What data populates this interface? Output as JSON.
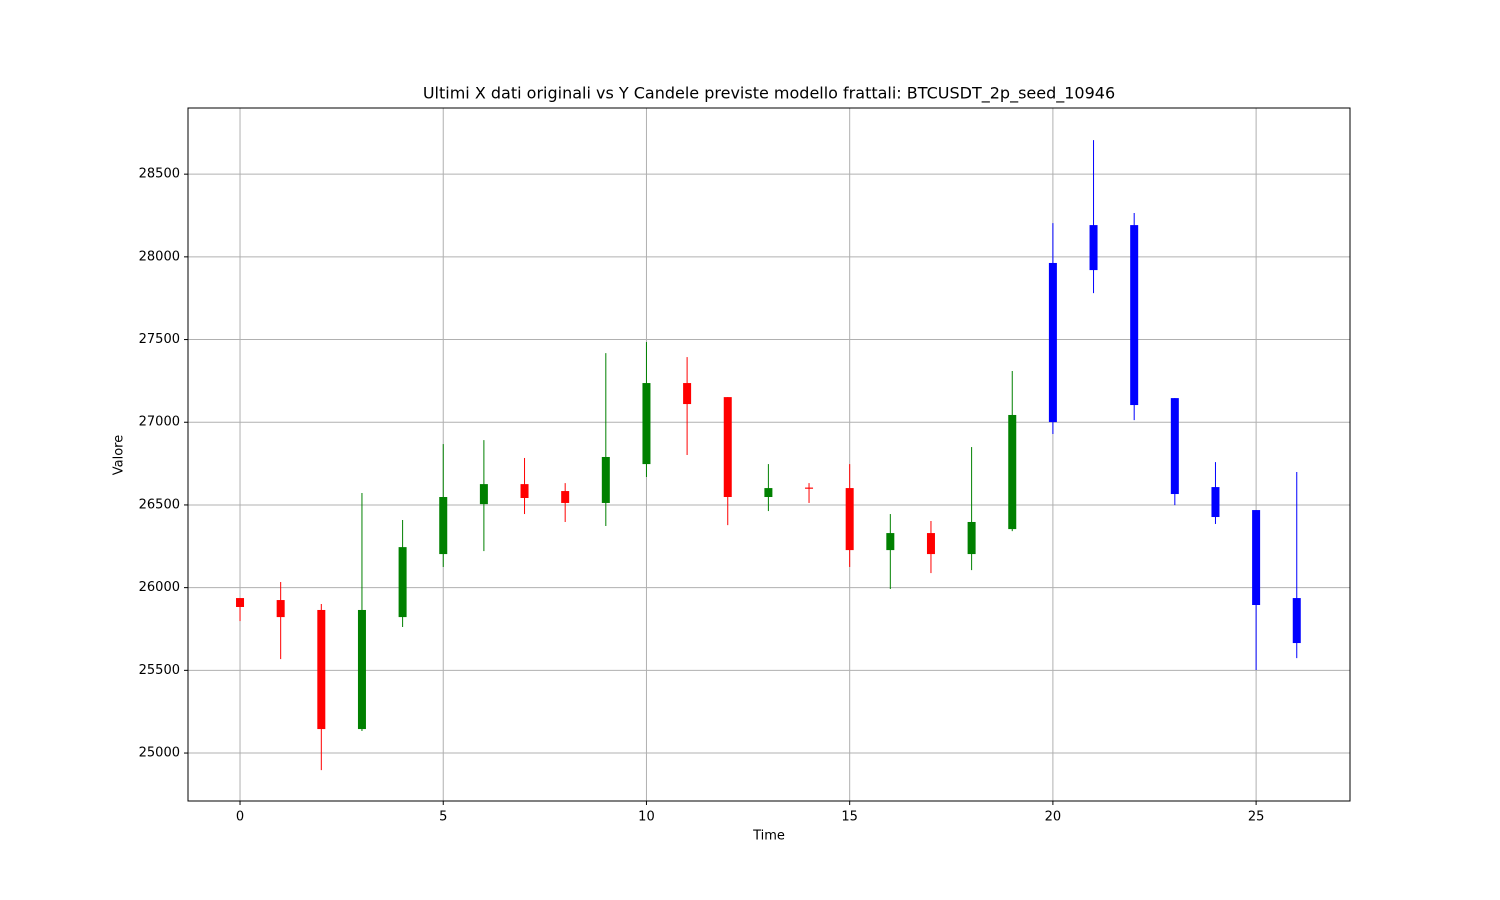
{
  "chart_data": {
    "type": "candlestick",
    "title": "Ultimi X dati originali vs Y Candele previste modello frattali: BTCUSDT_2p_seed_10946",
    "x_label": "Time",
    "y_label": "Valore",
    "x": [
      0,
      1,
      2,
      3,
      4,
      5,
      6,
      7,
      8,
      9,
      10,
      11,
      12,
      13,
      14,
      15,
      16,
      17,
      18,
      19,
      20,
      21,
      22,
      23,
      24,
      25,
      26
    ],
    "open": [
      25937,
      25925,
      25865,
      25145,
      25822,
      26203,
      26505,
      26626,
      26584,
      26512,
      26747,
      27237,
      27152,
      26548,
      26605,
      26602,
      26227,
      26330,
      26203,
      26354,
      27001,
      27920,
      28192,
      27146,
      26608,
      26469,
      25937
    ],
    "close": [
      25883,
      25822,
      25145,
      25865,
      26245,
      26548,
      26626,
      26542,
      26512,
      26790,
      27237,
      27110,
      26548,
      26602,
      26598,
      26227,
      26330,
      26203,
      26397,
      27044,
      27963,
      28192,
      27104,
      26566,
      26427,
      25895,
      25665
    ],
    "high": [
      25937,
      26034,
      25901,
      26572,
      26409,
      26868,
      26892,
      26784,
      26632,
      27418,
      27485,
      27394,
      27152,
      26747,
      26632,
      26747,
      26445,
      26403,
      26850,
      27310,
      28204,
      28706,
      28265,
      27146,
      26759,
      26469,
      26699
    ],
    "low": [
      25798,
      25568,
      24897,
      25133,
      25762,
      26125,
      26221,
      26445,
      26397,
      26373,
      26669,
      26802,
      26378,
      26463,
      26512,
      26125,
      25992,
      26088,
      26106,
      26342,
      26929,
      27781,
      27013,
      26499,
      26385,
      25502,
      25574
    ],
    "colors": [
      "red",
      "red",
      "red",
      "green",
      "green",
      "green",
      "green",
      "red",
      "red",
      "green",
      "green",
      "red",
      "red",
      "green",
      "red",
      "red",
      "green",
      "red",
      "green",
      "green",
      "blue",
      "blue",
      "blue",
      "blue",
      "blue",
      "blue",
      "blue"
    ],
    "xlim": [
      -1.28,
      27.31
    ],
    "ylim": [
      24710,
      28900
    ],
    "xticks": [
      0,
      5,
      10,
      15,
      20,
      25
    ],
    "yticks": [
      25000,
      25500,
      26000,
      26500,
      27000,
      27500,
      28000,
      28500
    ],
    "grid": true
  }
}
